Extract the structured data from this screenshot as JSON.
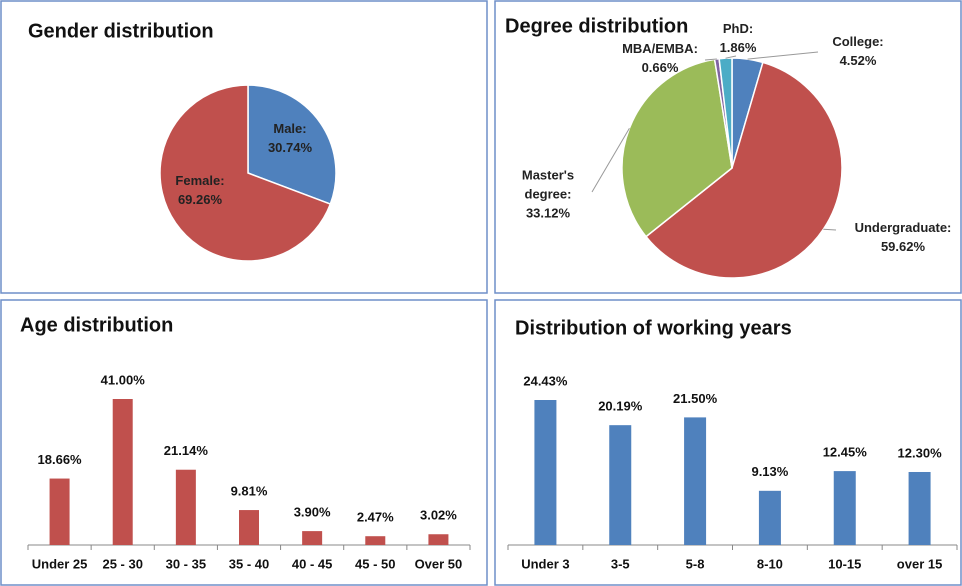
{
  "chart_data": [
    {
      "type": "pie",
      "title": "Gender distribution",
      "categories": [
        "Male:",
        "Female:"
      ],
      "values": [
        30.74,
        69.26
      ],
      "value_labels": [
        "30.74%",
        "69.26%"
      ],
      "colors": [
        "#4f81bd",
        "#c0504d"
      ]
    },
    {
      "type": "pie",
      "title": "Degree distribution",
      "categories": [
        "College:",
        "Undergraduate:",
        "Master's degree:",
        "MBA/EMBA:",
        "PhD:"
      ],
      "values": [
        4.52,
        59.62,
        33.12,
        0.66,
        1.86
      ],
      "value_labels": [
        "4.52%",
        "59.62%",
        "33.12%",
        "0.66%",
        "1.86%"
      ],
      "colors": [
        "#4f81bd",
        "#c0504d",
        "#9bbb59",
        "#8064a2",
        "#4bacc6"
      ]
    },
    {
      "type": "bar",
      "title": "Age distribution",
      "categories": [
        "Under 25",
        "25 - 30",
        "30 - 35",
        "35 - 40",
        "40 - 45",
        "45 - 50",
        "Over 50"
      ],
      "values": [
        18.66,
        41.0,
        21.14,
        9.81,
        3.9,
        2.47,
        3.02
      ],
      "value_labels": [
        "18.66%",
        "41.00%",
        "21.14%",
        "9.81%",
        "3.90%",
        "2.47%",
        "3.02%"
      ],
      "color": "#c0504d"
    },
    {
      "type": "bar",
      "title": "Distribution of working years",
      "categories": [
        "Under 3",
        "3-5",
        "5-8",
        "8-10",
        "10-15",
        "over 15"
      ],
      "values": [
        24.43,
        20.19,
        21.5,
        9.13,
        12.45,
        12.3
      ],
      "value_labels": [
        "24.43%",
        "20.19%",
        "21.50%",
        "9.13%",
        "12.45%",
        "12.30%"
      ],
      "color": "#4f81bd"
    }
  ]
}
